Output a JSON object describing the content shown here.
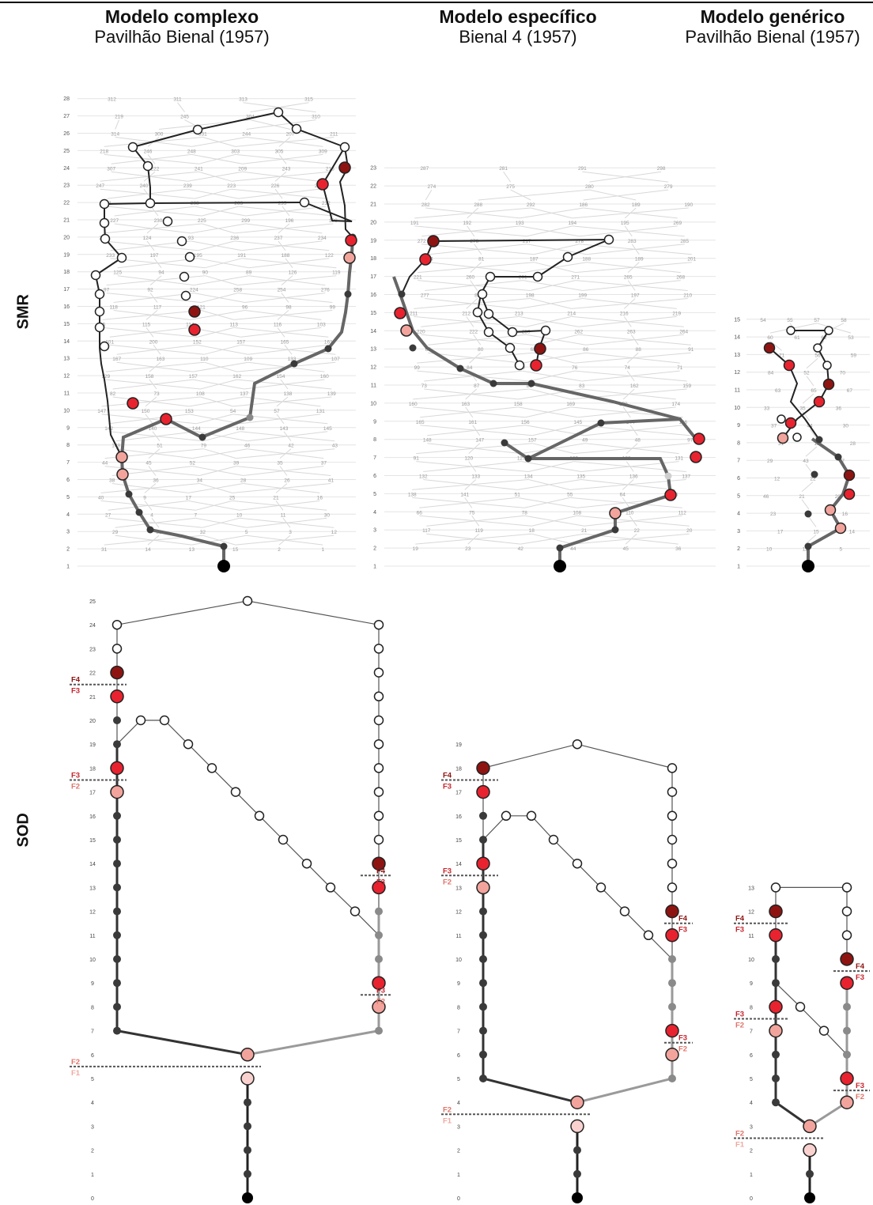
{
  "columns": [
    {
      "title": "Modelo complexo",
      "subtitle": "Pavilhão Bienal (1957)"
    },
    {
      "title": "Modelo específico",
      "subtitle": "Bienal 4 (1957)"
    },
    {
      "title": "Modelo genérico",
      "subtitle": "Pavilhão Bienal (1957)"
    }
  ],
  "rows": {
    "smr": "SMR",
    "sod": "SOD"
  },
  "colors": {
    "dark": "#3a3a3a",
    "mid": "#8a8a8a",
    "light": "#cfcfcf",
    "f1": "#f9d2cf",
    "f2": "#f2a49c",
    "f3": "#e8232f",
    "f4": "#8e1412",
    "grid": "#e4e4e4"
  },
  "smr": [
    {
      "levels": 28,
      "nums": [
        312,
        311,
        313,
        315,
        219,
        245,
        304,
        310,
        314,
        300,
        331,
        244,
        207,
        211,
        218,
        246,
        248,
        303,
        305,
        309,
        307,
        222,
        241,
        209,
        243,
        216,
        247,
        240,
        239,
        223,
        226,
        229,
        291,
        306,
        298,
        263,
        235,
        232,
        227,
        230,
        225,
        299,
        196,
        198,
        204,
        124,
        93,
        236,
        237,
        234,
        233,
        197,
        195,
        191,
        188,
        122,
        125,
        94,
        90,
        89,
        126,
        119,
        97,
        92,
        224,
        258,
        254,
        276,
        118,
        117,
        121,
        96,
        98,
        99,
        95,
        115,
        114,
        113,
        116,
        103,
        101,
        200,
        152,
        157,
        165,
        161,
        167,
        163,
        110,
        109,
        133,
        107,
        129,
        158,
        157,
        162,
        154,
        160,
        82,
        73,
        108,
        137,
        138,
        139,
        147,
        150,
        153,
        54,
        57,
        131,
        142,
        140,
        144,
        148,
        143,
        145,
        149,
        51,
        79,
        46,
        42,
        43,
        44,
        45,
        52,
        39,
        35,
        37,
        38,
        36,
        34,
        28,
        26,
        41,
        40,
        9,
        17,
        25,
        21,
        16,
        27,
        4,
        7,
        10,
        11,
        30,
        29,
        33,
        32,
        5,
        3,
        12,
        31,
        14,
        13,
        15,
        2,
        1
      ],
      "step": 21.9
    },
    {
      "levels": 23,
      "nums": [
        287,
        281,
        291,
        298,
        274,
        275,
        280,
        279,
        282,
        288,
        292,
        186,
        189,
        190,
        191,
        192,
        193,
        194,
        195,
        269,
        272,
        276,
        217,
        278,
        283,
        285,
        284,
        81,
        187,
        188,
        189,
        201,
        221,
        260,
        261,
        271,
        265,
        268,
        277,
        82,
        198,
        199,
        197,
        210,
        211,
        212,
        213,
        214,
        216,
        219,
        220,
        222,
        259,
        262,
        263,
        264,
        65,
        80,
        68,
        86,
        88,
        91,
        99,
        84,
        79,
        76,
        74,
        71,
        73,
        87,
        85,
        83,
        162,
        159,
        160,
        163,
        158,
        169,
        170,
        174,
        165,
        161,
        156,
        145,
        144,
        146,
        148,
        147,
        157,
        49,
        48,
        97,
        91,
        120,
        127,
        129,
        130,
        131,
        132,
        133,
        134,
        135,
        136,
        137,
        138,
        141,
        51,
        55,
        64,
        56,
        66,
        75,
        78,
        108,
        110,
        112,
        117,
        119,
        18,
        21,
        22,
        20,
        19,
        23,
        42,
        44,
        45,
        36,
        35,
        40,
        27,
        15,
        24,
        34,
        37,
        26,
        14,
        25,
        29,
        33,
        5,
        6,
        7,
        12,
        10,
        4,
        3,
        2,
        1
      ],
      "step": 22.9
    },
    {
      "levels": 15,
      "nums": [
        54,
        55,
        57,
        58,
        60,
        61,
        62,
        53,
        71,
        56,
        59,
        84,
        52,
        70,
        63,
        65,
        67,
        33,
        35,
        36,
        37,
        44,
        30,
        31,
        13,
        28,
        29,
        43,
        47,
        12,
        22,
        40,
        46,
        21,
        20,
        23,
        24,
        16,
        17,
        15,
        14,
        10,
        11,
        5,
        6,
        3,
        4,
        2,
        1
      ],
      "step": 22.3
    }
  ],
  "sod": [
    {
      "levels": 25,
      "marks": [
        {
          "label": "F4",
          "y": 22
        },
        {
          "label": "F3",
          "y": 21
        },
        {
          "label": "F3",
          "y": 18
        },
        {
          "label": "F2",
          "y": 17
        },
        {
          "label": "F4",
          "y": 14
        },
        {
          "label": "F3",
          "y": 13
        },
        {
          "label": "F3",
          "y": 9
        },
        {
          "label": "F2",
          "y": 8
        },
        {
          "label": "F2",
          "y": 6
        },
        {
          "label": "F1",
          "y": 5
        }
      ]
    },
    {
      "levels": 19,
      "marks": [
        {
          "label": "F4",
          "y": 18
        },
        {
          "label": "F3",
          "y": 17
        },
        {
          "label": "F3",
          "y": 14
        },
        {
          "label": "F2",
          "y": 13
        },
        {
          "label": "F4",
          "y": 12
        },
        {
          "label": "F3",
          "y": 11
        },
        {
          "label": "F3",
          "y": 7
        },
        {
          "label": "F2",
          "y": 6
        },
        {
          "label": "F2",
          "y": 4
        },
        {
          "label": "F1",
          "y": 3
        }
      ]
    },
    {
      "levels": 13,
      "marks": [
        {
          "label": "F4",
          "y": 12
        },
        {
          "label": "F3",
          "y": 11
        },
        {
          "label": "F4",
          "y": 10
        },
        {
          "label": "F3",
          "y": 9
        },
        {
          "label": "F3",
          "y": 8
        },
        {
          "label": "F2",
          "y": 7
        },
        {
          "label": "F3",
          "y": 5
        },
        {
          "label": "F2",
          "y": 4
        },
        {
          "label": "F2",
          "y": 3
        },
        {
          "label": "F1",
          "y": 2
        }
      ]
    }
  ]
}
